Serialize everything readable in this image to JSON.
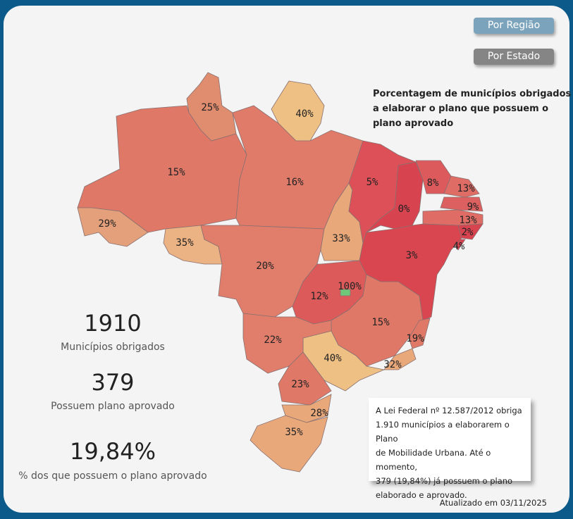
{
  "buttons": [
    "Por Região",
    "Por Estado"
  ],
  "map": {
    "title_lines": [
      "Porcentagem de municípios obrigados",
      "a elaborar o plano que possuem o",
      "plano aprovado"
    ],
    "labels": [
      "25%",
      "40%",
      "15%",
      "16%",
      "29%",
      "35%",
      "20%",
      "33%",
      "5%",
      "0%",
      "8%",
      "13%",
      "9%",
      "13%",
      "2%",
      "4%",
      "3%",
      "12%",
      "100%",
      "15%",
      "19%",
      "32%",
      "40%",
      "22%",
      "23%",
      "28%",
      "35%"
    ]
  },
  "kpis": [
    {
      "value": "1910",
      "label": "Municípios obrigados"
    },
    {
      "value": "379",
      "label": "Possuem plano aprovado"
    },
    {
      "value": "19,84%",
      "label": "% dos que possuem o plano aprovado"
    }
  ],
  "note_lines": [
    "A Lei Federal nº 12.587/2012 obriga",
    "1.910 municípios a elaborarem o Plano",
    "de Mobilidade Urbana. Até o momento,",
    "379 (19,84%) já possuem o plano",
    "elaborado e aprovado."
  ],
  "footer": "Atualizado em 03/11/2025"
}
